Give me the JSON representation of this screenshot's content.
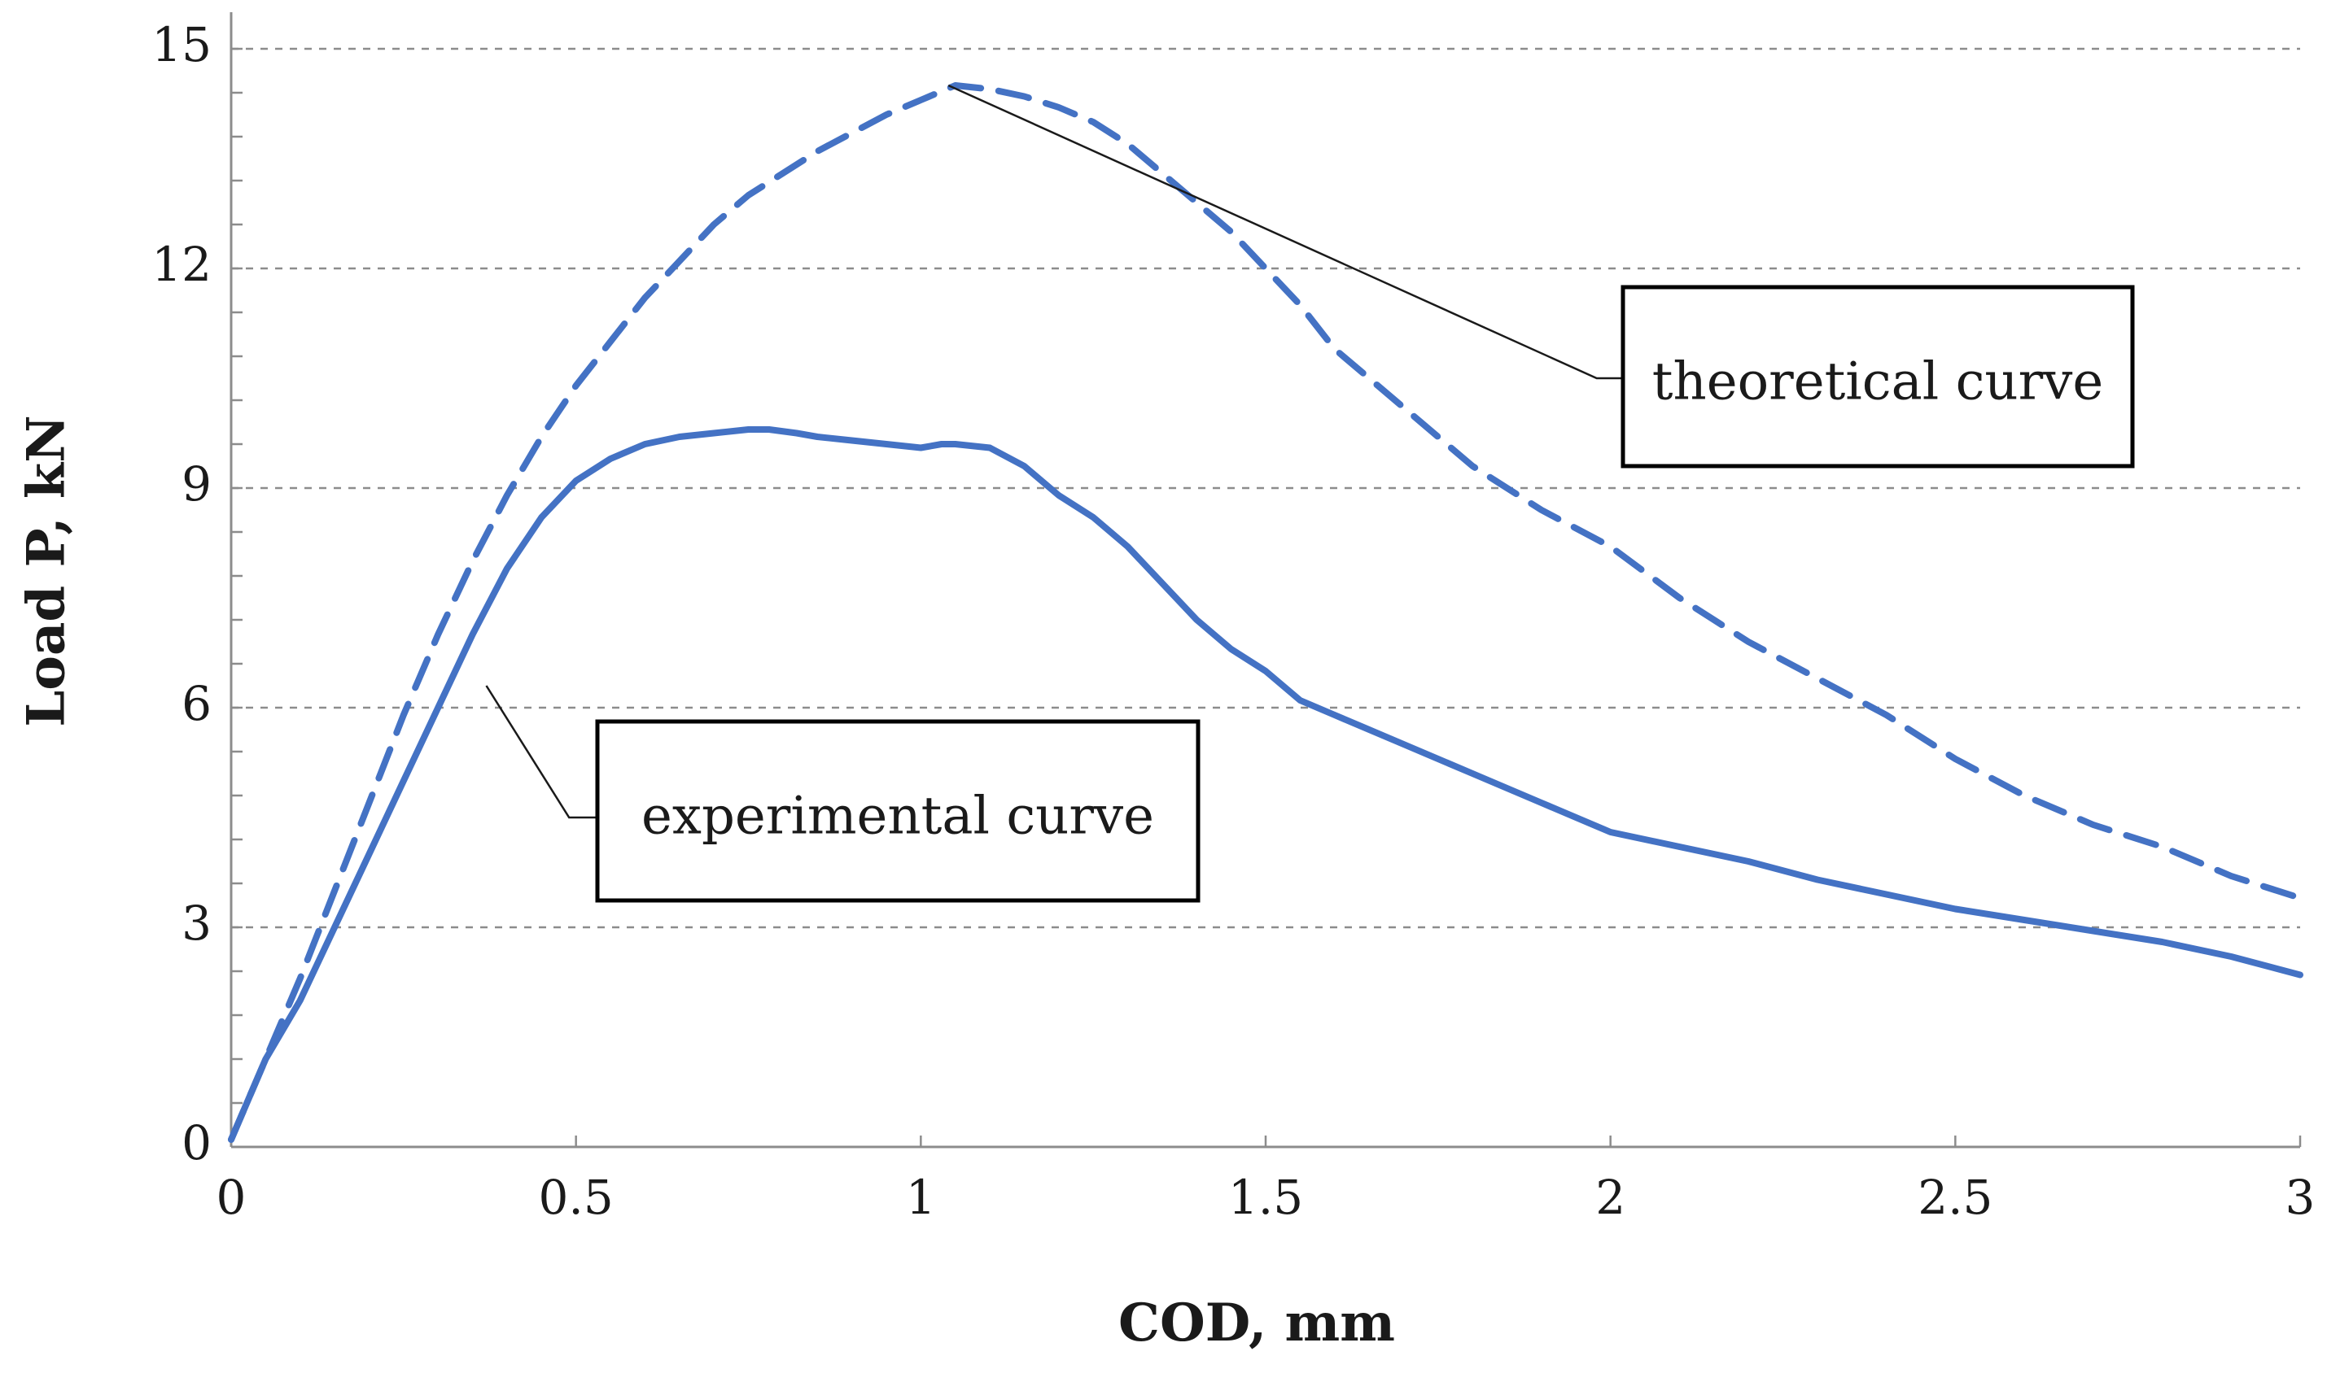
{
  "chart_data": {
    "type": "line",
    "title": "",
    "xlabel": "COD, mm",
    "ylabel": "Load P, kN",
    "xlim": [
      0,
      3
    ],
    "ylim": [
      0,
      15
    ],
    "x_ticks": [
      0,
      0.5,
      1,
      1.5,
      2,
      2.5,
      3
    ],
    "x_tick_labels": [
      "0",
      "0.5",
      "1",
      "1.5",
      "2",
      "2.5",
      "3"
    ],
    "y_ticks": [
      0,
      3,
      6,
      9,
      12,
      15
    ],
    "y_tick_labels": [
      "0",
      "3",
      "6",
      "9",
      "12",
      "15"
    ],
    "grid": "horizontal dashed",
    "series_color": "#4472c4",
    "series": [
      {
        "name": "experimental curve",
        "style": "solid",
        "x": [
          0,
          0.05,
          0.1,
          0.15,
          0.2,
          0.25,
          0.3,
          0.35,
          0.4,
          0.45,
          0.5,
          0.55,
          0.6,
          0.65,
          0.7,
          0.75,
          0.78,
          0.82,
          0.85,
          0.9,
          0.95,
          1.0,
          1.03,
          1.05,
          1.1,
          1.15,
          1.2,
          1.25,
          1.3,
          1.35,
          1.4,
          1.45,
          1.5,
          1.55,
          1.6,
          1.7,
          1.8,
          1.9,
          2.0,
          2.1,
          2.2,
          2.3,
          2.4,
          2.5,
          2.6,
          2.7,
          2.8,
          2.9,
          3.0
        ],
        "y": [
          0.1,
          1.2,
          2.0,
          3.0,
          4.0,
          5.0,
          6.0,
          7.0,
          7.9,
          8.6,
          9.1,
          9.4,
          9.6,
          9.7,
          9.75,
          9.8,
          9.8,
          9.75,
          9.7,
          9.65,
          9.6,
          9.55,
          9.6,
          9.6,
          9.55,
          9.3,
          8.9,
          8.6,
          8.2,
          7.7,
          7.2,
          6.8,
          6.5,
          6.1,
          5.9,
          5.5,
          5.1,
          4.7,
          4.3,
          4.1,
          3.9,
          3.65,
          3.45,
          3.25,
          3.1,
          2.95,
          2.8,
          2.6,
          2.35
        ]
      },
      {
        "name": "theoretical curve",
        "style": "dashed",
        "x": [
          0,
          0.05,
          0.1,
          0.15,
          0.2,
          0.25,
          0.3,
          0.35,
          0.4,
          0.45,
          0.5,
          0.55,
          0.6,
          0.65,
          0.7,
          0.75,
          0.8,
          0.85,
          0.9,
          0.95,
          1.0,
          1.05,
          1.1,
          1.15,
          1.2,
          1.25,
          1.3,
          1.35,
          1.4,
          1.45,
          1.5,
          1.55,
          1.6,
          1.7,
          1.8,
          1.9,
          2.0,
          2.1,
          2.2,
          2.3,
          2.4,
          2.5,
          2.6,
          2.7,
          2.8,
          2.9,
          3.0
        ],
        "y": [
          0.1,
          1.2,
          2.3,
          3.5,
          4.7,
          5.9,
          7.0,
          8.0,
          8.9,
          9.7,
          10.4,
          11.0,
          11.6,
          12.1,
          12.6,
          13.0,
          13.3,
          13.6,
          13.85,
          14.1,
          14.3,
          14.5,
          14.45,
          14.35,
          14.2,
          14.0,
          13.7,
          13.3,
          12.9,
          12.5,
          12.0,
          11.5,
          10.9,
          10.1,
          9.3,
          8.7,
          8.2,
          7.5,
          6.9,
          6.4,
          5.9,
          5.3,
          4.8,
          4.4,
          4.1,
          3.7,
          3.4
        ]
      }
    ],
    "annotations": [
      {
        "text": "theoretical curve"
      },
      {
        "text": "experimental curve"
      }
    ]
  }
}
